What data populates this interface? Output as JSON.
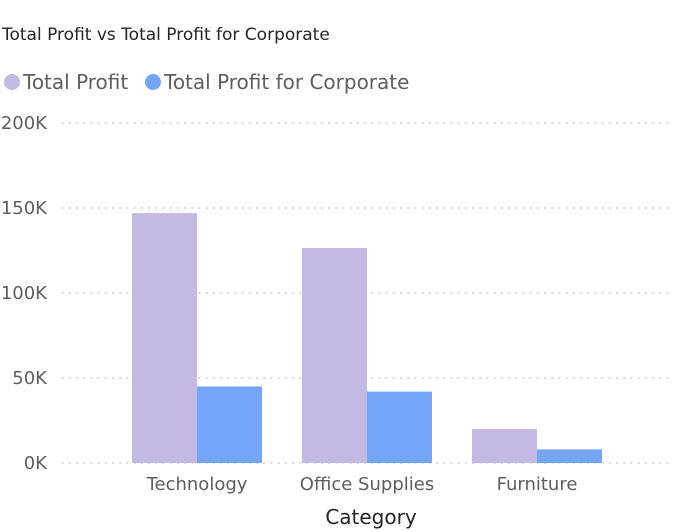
{
  "chart_data": {
    "type": "bar",
    "title": "Total Profit vs Total Profit for Corporate",
    "xlabel": "Category",
    "ylabel": "",
    "categories": [
      "Technology",
      "Office Supplies",
      "Furniture"
    ],
    "series": [
      {
        "name": "Total Profit",
        "values": [
          147000,
          126500,
          20000
        ],
        "color": "#c4b9e4"
      },
      {
        "name": "Total Profit for Corporate",
        "values": [
          45000,
          42000,
          8000
        ],
        "color": "#75a5f8"
      }
    ],
    "ylim": [
      0,
      200000
    ],
    "yticks": [
      0,
      50000,
      100000,
      150000,
      200000
    ],
    "ytick_labels": [
      "0K",
      "50K",
      "100K",
      "150K",
      "200K"
    ],
    "grid": true,
    "legend_position": "top-left"
  }
}
